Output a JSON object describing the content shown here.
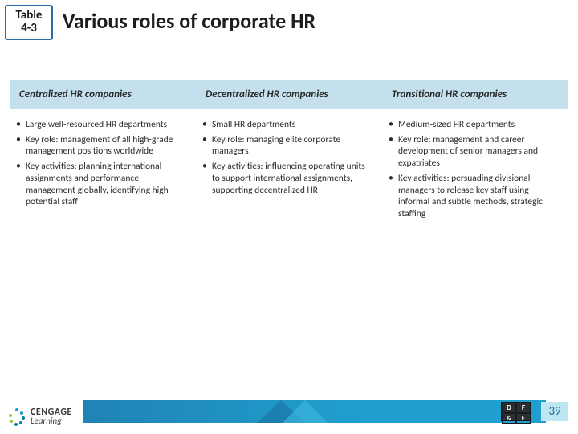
{
  "badge": {
    "line1": "Table",
    "line2": "4-3"
  },
  "title": "Various roles of corporate HR",
  "table": {
    "headers": [
      "Centralized HR companies",
      "Decentralized HR companies",
      "Transitional HR companies"
    ],
    "columns": [
      [
        "Large well-resourced HR departments",
        "Key role: management of all high-grade management positions worldwide",
        "Key activities: planning international assignments and performance management globally, identifying high-potential staff"
      ],
      [
        "Small HR departments",
        "Key role: managing elite corporate managers",
        "Key activities: influencing operating units to support international assignments, supporting decentralized HR"
      ],
      [
        "Medium-sized HR departments",
        "Key role: management and career development of senior managers and expatriates",
        "Key activities: persuading divisional managers to release key staff using informal and subtle methods, strategic staffing"
      ]
    ]
  },
  "logo": {
    "top": "CENGAGE",
    "bottom": "Learning"
  },
  "dfe": {
    "d": "D",
    "f": "F",
    "amp": "&",
    "e": "E"
  },
  "pageNumber": "39",
  "colors": {
    "badgeBorder": "#2c6ca8",
    "headerBg": "#c4e0ec",
    "footerBar": "#1f9fce",
    "pageBg": "#bfe6f3"
  }
}
